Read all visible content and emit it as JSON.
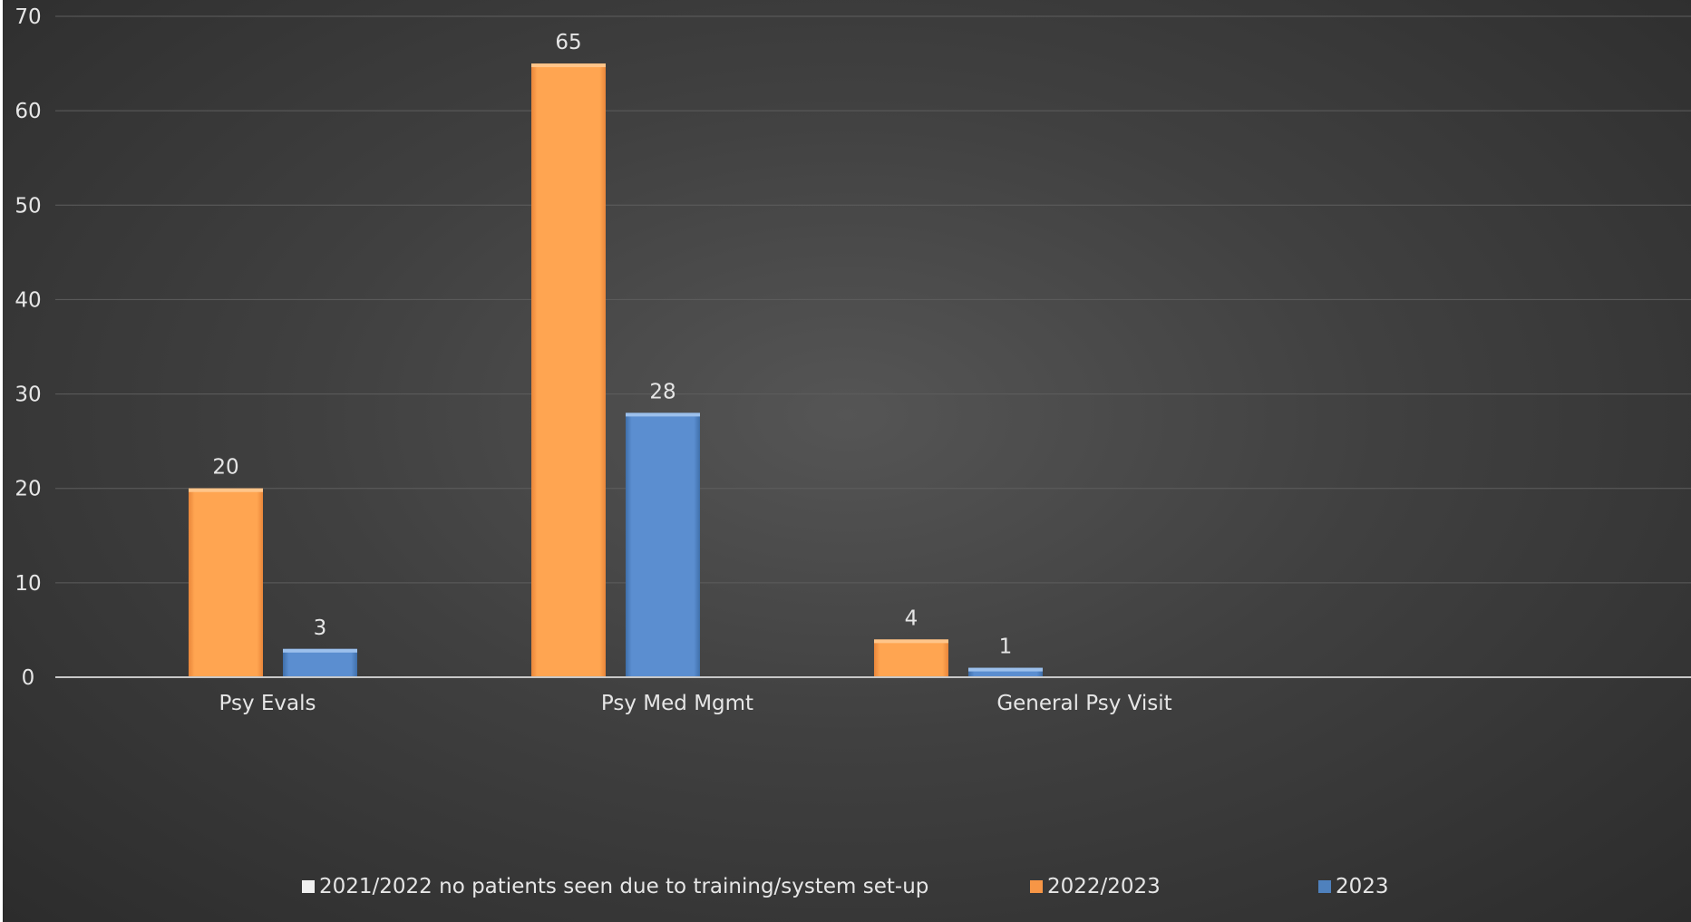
{
  "chart_data": {
    "type": "bar",
    "categories": [
      "Psy Evals",
      "Psy Med Mgmt",
      "General Psy Visit"
    ],
    "series": [
      {
        "name": "2021/2022 no patients seen due to training/system set-up",
        "values": [
          0,
          0,
          0
        ],
        "color": "#ffffff"
      },
      {
        "name": "2022/2023",
        "values": [
          20,
          65,
          4
        ],
        "color": "#f79646"
      },
      {
        "name": "2023",
        "values": [
          3,
          28,
          1
        ],
        "color": "#4f81bd"
      }
    ],
    "ylim": [
      0,
      70
    ],
    "yticks": [
      0,
      10,
      20,
      30,
      40,
      50,
      60,
      70
    ],
    "title": "",
    "xlabel": "",
    "ylabel": "",
    "grid": true,
    "legend_position": "bottom",
    "data_labels": true
  }
}
